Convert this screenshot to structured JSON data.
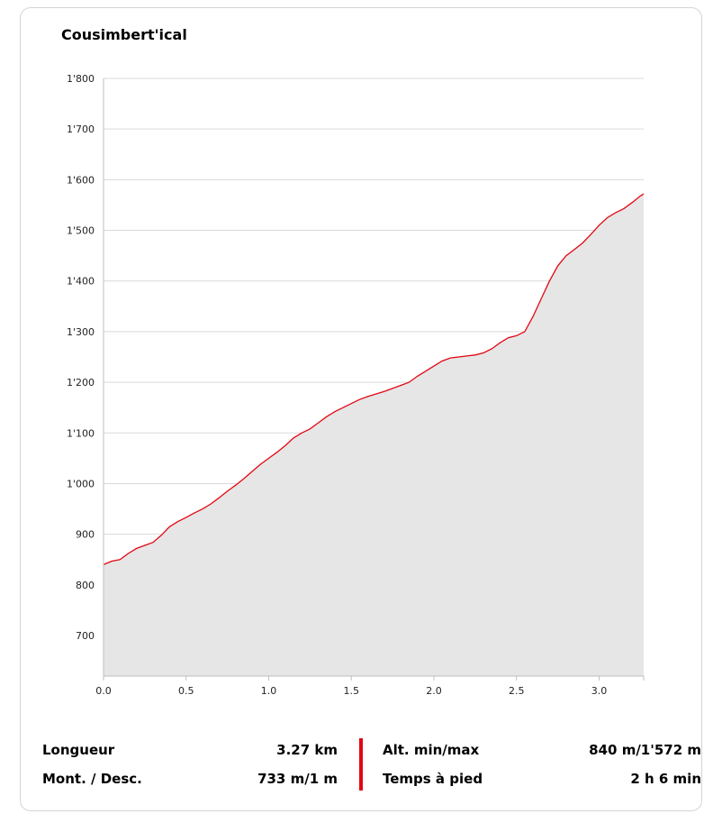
{
  "chart_data": {
    "type": "area",
    "title": "Cousimbert'ical",
    "xlabel": "",
    "ylabel": "",
    "xlim": [
      0,
      3.27
    ],
    "ylim": [
      620,
      1800
    ],
    "grid": true,
    "x_ticks": [
      "0.0",
      "0.5",
      "1.0",
      "1.5",
      "2.0",
      "2.5",
      "3.0"
    ],
    "x_tick_values": [
      0,
      0.5,
      1.0,
      1.5,
      2.0,
      2.5,
      3.0
    ],
    "y_ticks": [
      "700",
      "800",
      "900",
      "1'000",
      "1'100",
      "1'200",
      "1'300",
      "1'400",
      "1'500",
      "1'600",
      "1'700",
      "1'800"
    ],
    "y_tick_values": [
      700,
      800,
      900,
      1000,
      1100,
      1200,
      1300,
      1400,
      1500,
      1600,
      1700,
      1800
    ],
    "line_color": "#e30613",
    "fill_color": "#e6e6e6",
    "series": [
      {
        "x": [
          0.0,
          0.05,
          0.1,
          0.15,
          0.2,
          0.25,
          0.3,
          0.35,
          0.4,
          0.45,
          0.5,
          0.55,
          0.6,
          0.65,
          0.7,
          0.75,
          0.8,
          0.85,
          0.9,
          0.95,
          1.0,
          1.05,
          1.1,
          1.15,
          1.2,
          1.25,
          1.3,
          1.35,
          1.4,
          1.45,
          1.5,
          1.55,
          1.6,
          1.65,
          1.7,
          1.75,
          1.8,
          1.85,
          1.9,
          1.95,
          2.0,
          2.05,
          2.1,
          2.15,
          2.2,
          2.25,
          2.3,
          2.35,
          2.4,
          2.45,
          2.5,
          2.55,
          2.6,
          2.65,
          2.7,
          2.75,
          2.8,
          2.85,
          2.9,
          2.95,
          3.0,
          3.05,
          3.1,
          3.15,
          3.2,
          3.25,
          3.27
        ],
        "y": [
          840,
          847,
          850,
          862,
          872,
          878,
          884,
          898,
          915,
          925,
          933,
          942,
          950,
          960,
          972,
          985,
          997,
          1010,
          1024,
          1038,
          1050,
          1062,
          1075,
          1090,
          1100,
          1108,
          1120,
          1132,
          1142,
          1150,
          1158,
          1166,
          1172,
          1177,
          1182,
          1188,
          1194,
          1200,
          1212,
          1222,
          1232,
          1242,
          1248,
          1250,
          1252,
          1254,
          1258,
          1266,
          1278,
          1288,
          1292,
          1300,
          1330,
          1365,
          1400,
          1430,
          1450,
          1462,
          1475,
          1492,
          1510,
          1525,
          1535,
          1543,
          1555,
          1568,
          1572
        ]
      }
    ]
  },
  "stats": {
    "length_label": "Longueur",
    "length_value": "3.27 km",
    "updown_label": "Mont. / Desc.",
    "updown_value": "733 m/1 m",
    "alt_label": "Alt. min/max",
    "alt_value": "840 m/1'572 m",
    "time_label": "Temps à pied",
    "time_value": "2 h 6 min",
    "divider_color": "#e30613"
  }
}
